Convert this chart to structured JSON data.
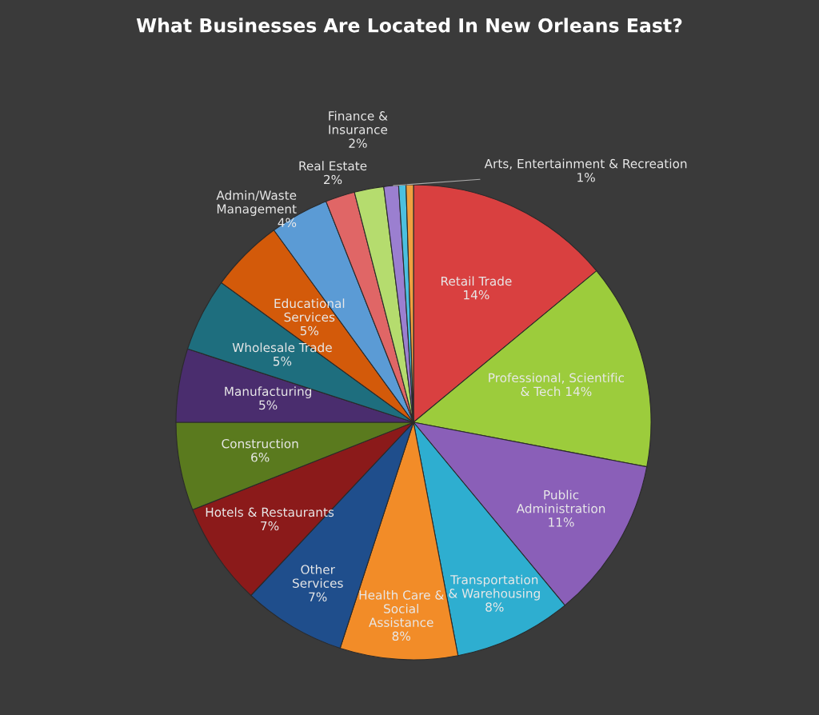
{
  "chart_data": {
    "type": "pie",
    "title": "What Businesses Are Located In New Orleans East?",
    "categories": [
      "Retail Trade",
      "Professional, Scientific\n& Tech ",
      "Public\nAdministration",
      "Transportation\n& Warehousing",
      "Health Care &\nSocial\nAssistance",
      "Other\nServices",
      "Hotels & Restaurants",
      "Construction",
      "Manufacturing",
      "Wholesale Trade",
      "Educational\nServices",
      "Admin/Waste\nManagement",
      "Real Estate",
      "Finance &\nInsurance",
      "Arts, Entertainment & Recreation",
      null,
      null
    ],
    "values": [
      14,
      14,
      11,
      8,
      8,
      7,
      7,
      6,
      5,
      5,
      5,
      4,
      2,
      2,
      1,
      0.5,
      0.5
    ],
    "colors": [
      "#d94040",
      "#9ccc3c",
      "#8a5fb8",
      "#2eaed0",
      "#f28c28",
      "#1f4e8c",
      "#8b1a1a",
      "#5a7a1e",
      "#4a2d6e",
      "#1e6e7e",
      "#d35a0a",
      "#5b9bd5",
      "#e06666",
      "#b5dc6e",
      "#9b7fd0",
      "#4bc0e0",
      "#f0a040"
    ],
    "value_labels": [
      "14%",
      "14%",
      "11%",
      "8%",
      "8%",
      "7%",
      "7%",
      "6%",
      "5%",
      "5%",
      "5%",
      "4%",
      "2%",
      "2%",
      "1%",
      null,
      null
    ],
    "legend": false
  }
}
